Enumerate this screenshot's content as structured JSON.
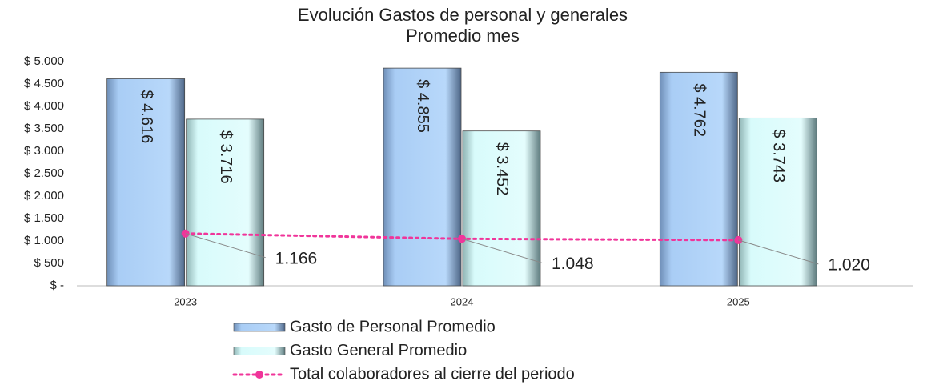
{
  "chart_data": {
    "type": "bar",
    "title": "Evolución Gastos de personal y generales",
    "subtitle": "Promedio mes",
    "categories": [
      "2023",
      "2024",
      "2025"
    ],
    "series": [
      {
        "name": "Gasto de Personal Promedio",
        "color": "#a9cdf5",
        "values": [
          4616,
          4855,
          4762
        ],
        "value_labels": [
          "$ 4.616",
          "$ 4.855",
          "$ 4.762"
        ]
      },
      {
        "name": "Gasto General Promedio",
        "color": "#d8fbfb",
        "values": [
          3716,
          3452,
          3743
        ],
        "value_labels": [
          "$ 3.716",
          "$ 3.452",
          "$ 3.743"
        ]
      },
      {
        "name": "Total colaboradores al cierre del periodo",
        "type": "line",
        "color": "#f0359a",
        "values": [
          1166,
          1048,
          1020
        ],
        "value_labels": [
          "1.166",
          "1.048",
          "1.020"
        ]
      }
    ],
    "ylim": [
      0,
      5000
    ],
    "yticks": [
      {
        "value": 0,
        "label": "$ -"
      },
      {
        "value": 500,
        "label": "$ 500"
      },
      {
        "value": 1000,
        "label": "$ 1.000"
      },
      {
        "value": 1500,
        "label": "$ 1.500"
      },
      {
        "value": 2000,
        "label": "$ 2.000"
      },
      {
        "value": 2500,
        "label": "$ 2.500"
      },
      {
        "value": 3000,
        "label": "$ 3.000"
      },
      {
        "value": 3500,
        "label": "$ 3.500"
      },
      {
        "value": 4000,
        "label": "$ 4.000"
      },
      {
        "value": 4500,
        "label": "$ 4.500"
      },
      {
        "value": 5000,
        "label": "$ 5.000"
      }
    ],
    "grid": false,
    "legend": "bottom"
  }
}
